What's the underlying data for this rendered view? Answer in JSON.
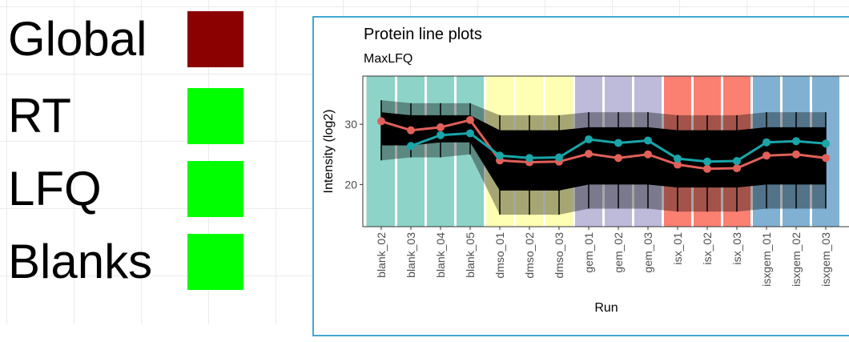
{
  "legend": {
    "items": [
      {
        "label": "Global",
        "color": "#8b0000"
      },
      {
        "label": "RT",
        "color": "#00ff00"
      },
      {
        "label": "LFQ",
        "color": "#00ff00"
      },
      {
        "label": "Blanks",
        "color": "#00ff00"
      }
    ]
  },
  "chart_data": {
    "type": "line",
    "title": "Protein line plots",
    "subtitle": "MaxLFQ",
    "xlabel": "Run",
    "ylabel": "Intensity (log2)",
    "ylim": [
      13,
      38
    ],
    "yticks": [
      20,
      30
    ],
    "categories": [
      "blank_02",
      "blank_03",
      "blank_04",
      "blank_05",
      "dmso_01",
      "dmso_02",
      "dmso_03",
      "gem_01",
      "gem_02",
      "gem_03",
      "isx_01",
      "isx_02",
      "isx_03",
      "isxgem_01",
      "isxgem_02",
      "isxgem_03"
    ],
    "groups": [
      {
        "name": "blank",
        "color": "#8dd3c7",
        "runs": [
          0,
          1,
          2,
          3
        ]
      },
      {
        "name": "dmso",
        "color": "#ffffb3",
        "runs": [
          4,
          5,
          6
        ]
      },
      {
        "name": "gem",
        "color": "#bebada",
        "runs": [
          7,
          8,
          9
        ]
      },
      {
        "name": "isx",
        "color": "#fb8072",
        "runs": [
          10,
          11,
          12
        ]
      },
      {
        "name": "isxgem",
        "color": "#80b1d3",
        "runs": [
          13,
          14,
          15
        ]
      }
    ],
    "background_distribution": {
      "outer_low": [
        24.0,
        24.5,
        24.5,
        25.0,
        15.0,
        15.0,
        15.0,
        16.0,
        16.0,
        16.0,
        15.5,
        15.5,
        15.5,
        16.0,
        16.0,
        16.0
      ],
      "outer_high": [
        34.0,
        33.5,
        33.5,
        33.5,
        31.5,
        31.5,
        31.5,
        32.0,
        32.0,
        32.0,
        31.5,
        31.5,
        31.5,
        32.0,
        32.0,
        32.0
      ],
      "core_low": [
        26.5,
        26.5,
        27.0,
        27.0,
        19.0,
        19.0,
        19.0,
        20.0,
        20.0,
        20.0,
        19.5,
        19.5,
        19.5,
        20.0,
        20.0,
        20.0
      ],
      "core_high": [
        32.0,
        31.5,
        31.5,
        31.5,
        29.0,
        29.0,
        29.0,
        29.5,
        29.5,
        29.5,
        29.0,
        29.0,
        29.0,
        29.5,
        29.5,
        29.5
      ]
    },
    "series": [
      {
        "name": "median_red",
        "color": "#e0605a",
        "values": [
          30.5,
          29.0,
          29.5,
          30.7,
          24.0,
          23.7,
          23.8,
          25.1,
          24.4,
          25.0,
          23.3,
          22.6,
          22.7,
          24.8,
          25.0,
          24.4
        ]
      },
      {
        "name": "median_teal",
        "color": "#1aa5a8",
        "values": [
          null,
          26.4,
          28.2,
          28.5,
          24.8,
          24.4,
          24.5,
          27.5,
          26.9,
          27.3,
          24.3,
          23.8,
          23.9,
          27.0,
          27.2,
          26.8
        ]
      }
    ]
  }
}
